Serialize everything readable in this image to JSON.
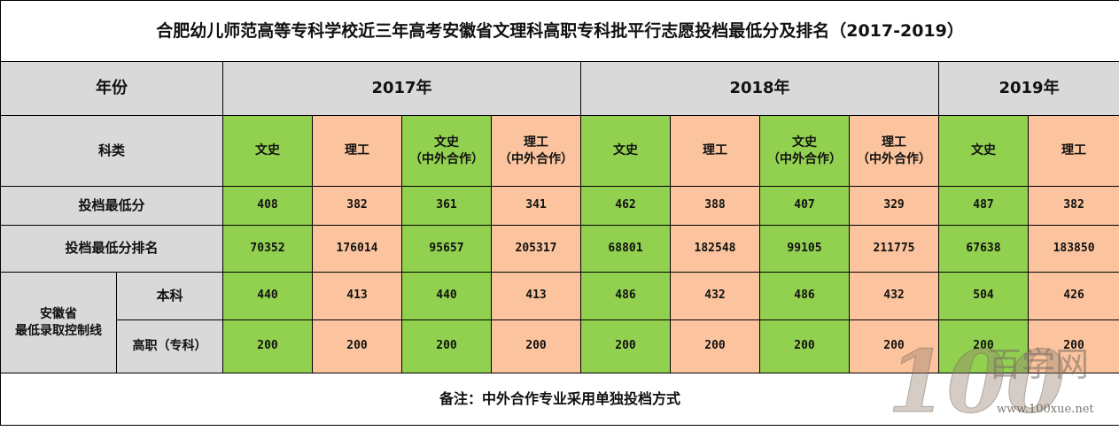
{
  "title": "合肥幼儿师范高等专科学校近三年高考安徽省文理科高职专科批平行志愿投档最低分及排名（2017-2019）",
  "header": {
    "year_label": "年份",
    "years": [
      "2017年",
      "2018年",
      "2019年"
    ]
  },
  "category_row": {
    "label": "科类",
    "cols": [
      {
        "l1": "文史",
        "l2": ""
      },
      {
        "l1": "理工",
        "l2": ""
      },
      {
        "l1": "文史",
        "l2": "（中外合作）"
      },
      {
        "l1": "理工",
        "l2": "（中外合作）"
      },
      {
        "l1": "文史",
        "l2": ""
      },
      {
        "l1": "理工",
        "l2": ""
      },
      {
        "l1": "文史",
        "l2": "（中外合作）"
      },
      {
        "l1": "理工",
        "l2": "（中外合作）"
      },
      {
        "l1": "文史",
        "l2": ""
      },
      {
        "l1": "理工",
        "l2": ""
      }
    ]
  },
  "min_score_row": {
    "label": "投档最低分",
    "values": [
      "408",
      "382",
      "361",
      "341",
      "462",
      "388",
      "407",
      "329",
      "487",
      "382"
    ]
  },
  "rank_row": {
    "label": "投档最低分排名",
    "values": [
      "70352",
      "176014",
      "95657",
      "205317",
      "68801",
      "182548",
      "99105",
      "211775",
      "67638",
      "183850"
    ]
  },
  "control_line": {
    "label_line1": "安徽省",
    "label_line2": "最低录取控制线",
    "benke": {
      "label": "本科",
      "values": [
        "440",
        "413",
        "440",
        "413",
        "486",
        "432",
        "486",
        "432",
        "504",
        "426"
      ]
    },
    "gaozhi": {
      "label": "高职（专科）",
      "values": [
        "200",
        "200",
        "200",
        "200",
        "200",
        "200",
        "200",
        "200",
        "200",
        "200"
      ]
    }
  },
  "note": "备注：中外合作专业采用单独投档方式",
  "watermark": {
    "number": "100",
    "brand": "百学网",
    "url": "www.100xue.net"
  },
  "colors": {
    "green": "#92d050",
    "orange": "#fbc49e",
    "gray": "#d9d9d9"
  }
}
